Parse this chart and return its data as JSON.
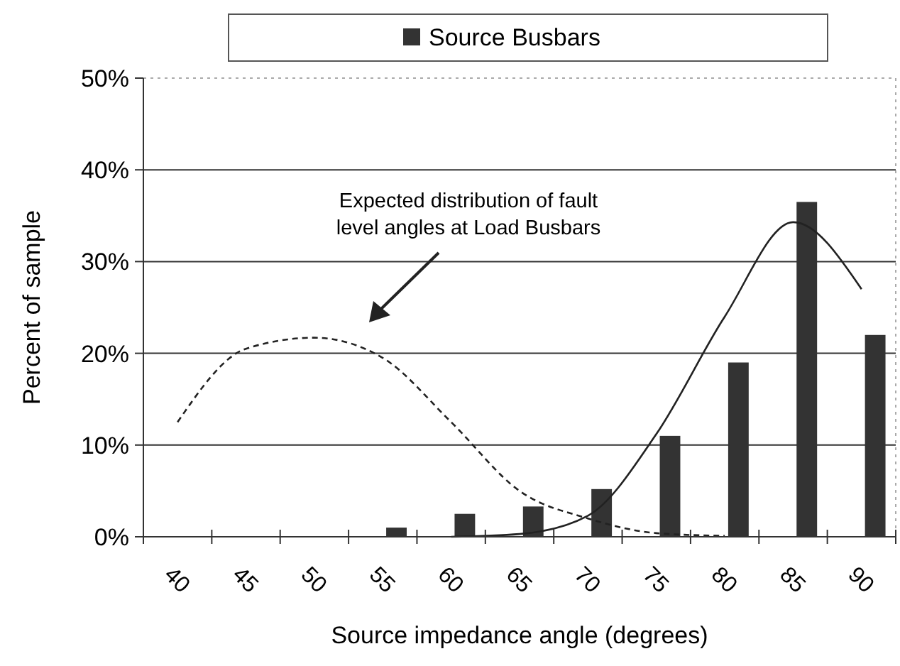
{
  "chart_data": {
    "type": "bar",
    "xlabel": "Source impedance angle (degrees)",
    "ylabel": "Percent of sample",
    "categories": [
      "40",
      "45",
      "50",
      "55",
      "60",
      "65",
      "70",
      "75",
      "80",
      "85",
      "90"
    ],
    "series": [
      {
        "name": "Source Busbars",
        "color": "#333333",
        "values": [
          0,
          0,
          0,
          1,
          2.5,
          3.3,
          5.2,
          11,
          19,
          36.5,
          22
        ]
      },
      {
        "type": "line",
        "color": "#222222",
        "line_style": "solid",
        "values": [
          null,
          null,
          null,
          null,
          0,
          0.3,
          2.3,
          11.2,
          24,
          34.3,
          27
        ]
      },
      {
        "type": "line",
        "color": "#222222",
        "line_style": "dashed",
        "values": [
          12.5,
          20.5,
          21.7,
          19.5,
          12.5,
          5,
          2,
          0.4,
          0.1,
          null,
          null
        ]
      }
    ],
    "ylim": [
      0,
      50
    ],
    "yticks": [
      {
        "value": 0,
        "label": "0%"
      },
      {
        "value": 10,
        "label": "10%"
      },
      {
        "value": 20,
        "label": "20%"
      },
      {
        "value": 30,
        "label": "30%"
      },
      {
        "value": 40,
        "label": "40%"
      },
      {
        "value": 50,
        "label": "50%"
      }
    ],
    "grid": "y",
    "legend": "top",
    "annotations": [
      "Expected distribution of fault level angles at Load Busbars"
    ]
  }
}
